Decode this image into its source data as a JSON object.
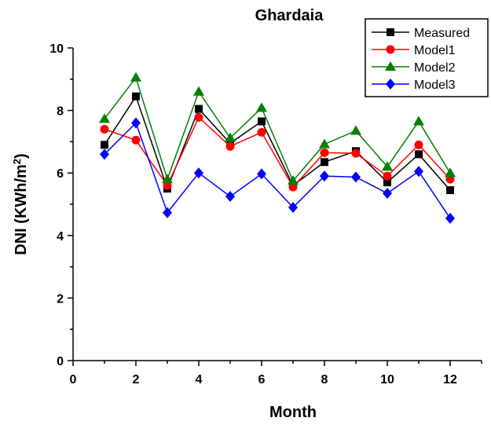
{
  "chart_data": {
    "type": "line",
    "title": "Ghardaia",
    "xlabel": "Month",
    "ylabel_main": "DNI (KWh/m",
    "ylabel_sup": "2",
    "ylabel_close": ")",
    "xlim": [
      0,
      13
    ],
    "ylim": [
      0,
      10
    ],
    "x_ticks": [
      0,
      2,
      4,
      6,
      8,
      10,
      12
    ],
    "y_ticks": [
      0,
      2,
      4,
      6,
      8,
      10
    ],
    "grid": false,
    "legend_position": "top-right",
    "x": [
      1,
      2,
      3,
      4,
      5,
      6,
      7,
      8,
      9,
      10,
      11,
      12
    ],
    "series": [
      {
        "name": "Measured",
        "color": "#000000",
        "marker": "square",
        "values": [
          6.9,
          8.45,
          5.5,
          8.05,
          6.95,
          7.65,
          5.6,
          6.35,
          6.7,
          5.7,
          6.6,
          5.45
        ]
      },
      {
        "name": "Model1",
        "color": "#ff0000",
        "marker": "circle",
        "values": [
          7.4,
          7.05,
          5.6,
          7.78,
          6.85,
          7.3,
          5.55,
          6.65,
          6.63,
          5.9,
          6.9,
          5.8
        ]
      },
      {
        "name": "Model2",
        "color": "#008000",
        "marker": "triangle",
        "values": [
          7.73,
          9.05,
          5.8,
          8.6,
          7.12,
          8.08,
          5.75,
          6.92,
          7.35,
          6.2,
          7.65,
          6.0
        ]
      },
      {
        "name": "Model3",
        "color": "#0000ff",
        "marker": "diamond",
        "values": [
          6.6,
          7.6,
          4.73,
          6.0,
          5.25,
          5.97,
          4.9,
          5.9,
          5.87,
          5.35,
          6.05,
          4.55
        ]
      }
    ]
  }
}
